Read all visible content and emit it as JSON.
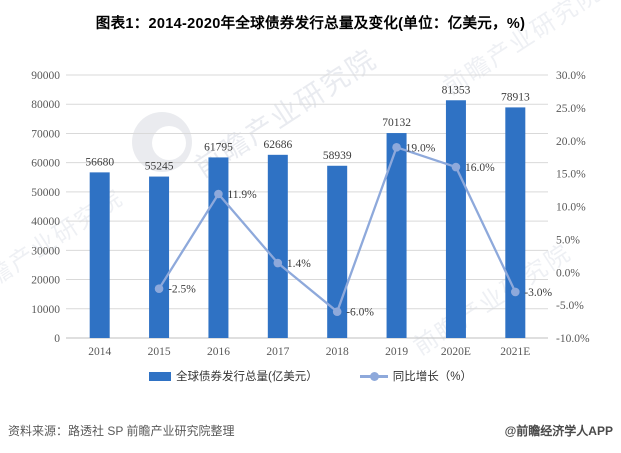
{
  "title": "图表1：2014-2020年全球债券发行总量及变化(单位：亿美元，%)",
  "chart_data": {
    "type": "bar",
    "subtype": "bar-line-combo",
    "categories": [
      "2014",
      "2015",
      "2016",
      "2017",
      "2018",
      "2019",
      "2020E",
      "2021E"
    ],
    "series": [
      {
        "name": "全球债券发行总量(亿美元）",
        "type": "bar",
        "values": [
          56680,
          55245,
          61795,
          62686,
          58939,
          70132,
          81353,
          78913
        ],
        "labels": [
          "56680",
          "55245",
          "61795",
          "62686",
          "58939",
          "70132",
          "81353",
          "78913"
        ]
      },
      {
        "name": "同比增长（%）",
        "type": "line",
        "values": [
          null,
          -2.5,
          11.9,
          1.4,
          -6.0,
          19.0,
          16.0,
          -3.0
        ],
        "labels": [
          null,
          "-2.5%",
          "11.9%",
          "1.4%",
          "-6.0%",
          "19.0%",
          "16.0%",
          "-3.0%"
        ]
      }
    ],
    "left_axis": {
      "min": 0,
      "max": 90000,
      "step": 10000,
      "ticks": [
        "90000",
        "80000",
        "70000",
        "60000",
        "50000",
        "40000",
        "30000",
        "20000",
        "10000",
        "0"
      ]
    },
    "right_axis": {
      "min": -10,
      "max": 30,
      "step": 5,
      "ticks": [
        "30.0%",
        "25.0%",
        "20.0%",
        "15.0%",
        "10.0%",
        "5.0%",
        "0.0%",
        "-5.0%",
        "-10.0%"
      ]
    },
    "grid": true,
    "legend_position": "bottom"
  },
  "colors": {
    "bar": "#2F72C4",
    "line": "#8EA9DB",
    "grid": "#D9D9D9",
    "axis": "#BFBFBF",
    "tick_text": "#595959",
    "data_label": "#3d3d3d"
  },
  "legend": {
    "bar_label": "全球债券发行总量(亿美元）",
    "line_label": "同比增长（%）"
  },
  "footer": {
    "source": "资料来源：路透社 SP 前瞻产业研究院整理",
    "brand": "@前瞻经济学人APP"
  },
  "watermark": {
    "text": "前瞻产业研究院"
  }
}
